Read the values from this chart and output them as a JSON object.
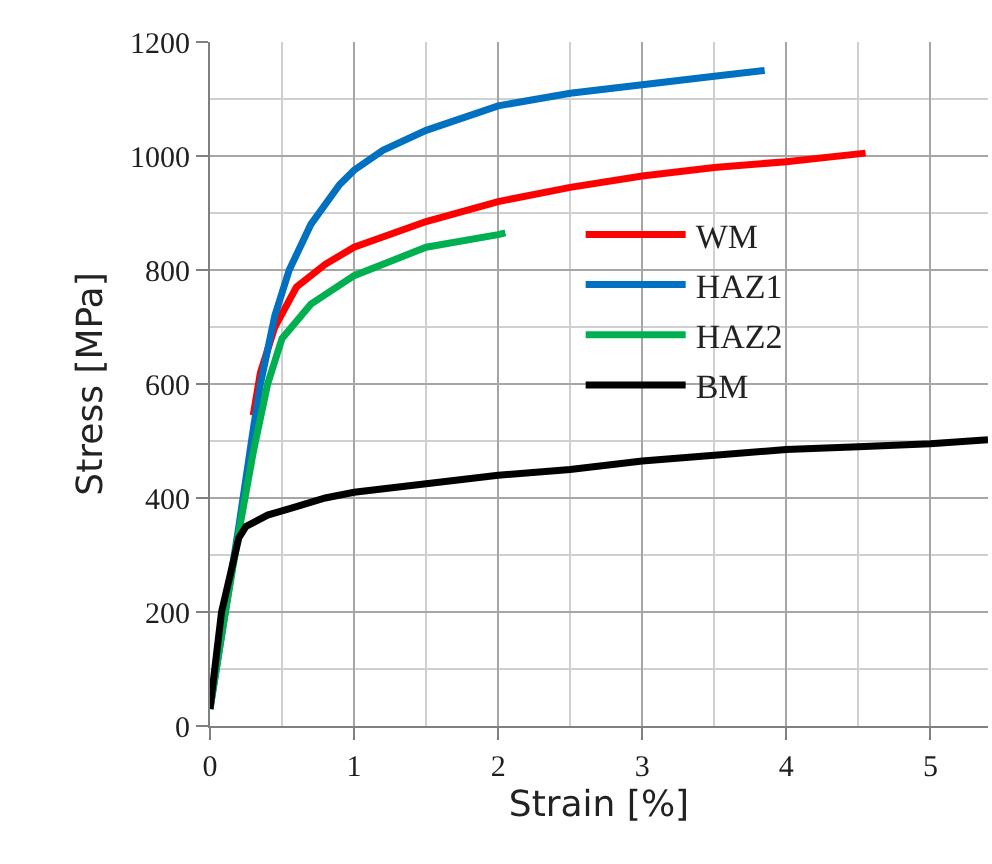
{
  "chart_data": {
    "type": "line",
    "xlabel": "Strain [%]",
    "ylabel": "Stress [MPa]",
    "xlim": [
      0,
      5.4
    ],
    "xticks": [
      0,
      1,
      2,
      3,
      4,
      5
    ],
    "ylim": [
      0,
      1200
    ],
    "yticks": [
      0,
      200,
      400,
      600,
      800,
      1000,
      1200
    ],
    "grid": true,
    "legend": "center right",
    "marker": "none",
    "line_style": "solid",
    "series": [
      {
        "name": "WM",
        "color": "#ff0000",
        "x": [
          0.3,
          0.35,
          0.45,
          0.6,
          0.8,
          1,
          1.5,
          2,
          2.5,
          3,
          3.5,
          4,
          4.55
        ],
        "values": [
          545,
          620,
          700,
          770,
          810,
          840,
          885,
          920,
          945,
          965,
          980,
          990,
          1005
        ]
      },
      {
        "name": "HAZ1",
        "color": "#0070c0",
        "x": [
          0,
          0.1,
          0.2,
          0.3,
          0.35,
          0.45,
          0.55,
          0.7,
          0.9,
          1,
          1.2,
          1.5,
          2,
          2.5,
          3,
          3.5,
          3.85
        ],
        "values": [
          30,
          190,
          350,
          520,
          600,
          720,
          800,
          880,
          950,
          975,
          1010,
          1045,
          1088,
          1110,
          1125,
          1140,
          1150
        ]
      },
      {
        "name": "HAZ2",
        "color": "#00b050",
        "x": [
          0,
          0.1,
          0.2,
          0.3,
          0.4,
          0.5,
          0.7,
          1,
          1.5,
          2,
          2.05
        ],
        "values": [
          30,
          190,
          340,
          480,
          600,
          680,
          740,
          790,
          840,
          862,
          865
        ]
      },
      {
        "name": "BM",
        "color": "#000000",
        "x": [
          0,
          0.08,
          0.2,
          0.25,
          0.4,
          0.6,
          0.8,
          1,
          1.5,
          2,
          2.5,
          3,
          3.5,
          4,
          4.5,
          5,
          5.4
        ],
        "values": [
          30,
          200,
          330,
          350,
          370,
          385,
          400,
          410,
          425,
          440,
          450,
          465,
          475,
          485,
          490,
          495,
          502
        ]
      }
    ]
  }
}
